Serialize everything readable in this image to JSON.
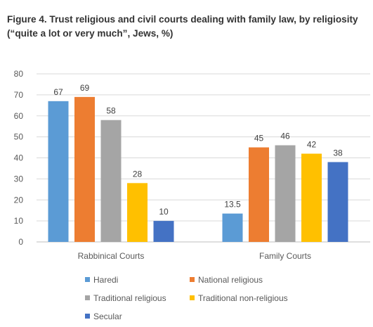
{
  "title_line1": "Figure 4. Trust religious and civil courts dealing with family law, by religiosity",
  "title_line2": "(“quite a lot or very much”, Jews, %)",
  "chart_data": {
    "type": "bar",
    "categories": [
      "Rabbinical Courts",
      "Family Courts"
    ],
    "series": [
      {
        "name": "Haredi",
        "values": [
          67,
          13.5
        ],
        "color": "#5B9BD5"
      },
      {
        "name": "National religious",
        "values": [
          69,
          45
        ],
        "color": "#ED7D31"
      },
      {
        "name": "Traditional religious",
        "values": [
          58,
          46
        ],
        "color": "#A5A5A5"
      },
      {
        "name": "Traditional non-religious",
        "values": [
          28,
          42
        ],
        "color": "#FFC000"
      },
      {
        "name": "Secular",
        "values": [
          10,
          38
        ],
        "color": "#4472C4"
      }
    ],
    "data_labels": [
      [
        "67",
        "13.5"
      ],
      [
        "69",
        "45"
      ],
      [
        "58",
        "46"
      ],
      [
        "28",
        "42"
      ],
      [
        "10",
        "38"
      ]
    ],
    "ylim": [
      0,
      80
    ],
    "yticks": [
      0,
      10,
      20,
      30,
      40,
      50,
      60,
      70,
      80
    ],
    "grid": true,
    "legend": "bottom",
    "xlabel": "",
    "ylabel": ""
  }
}
